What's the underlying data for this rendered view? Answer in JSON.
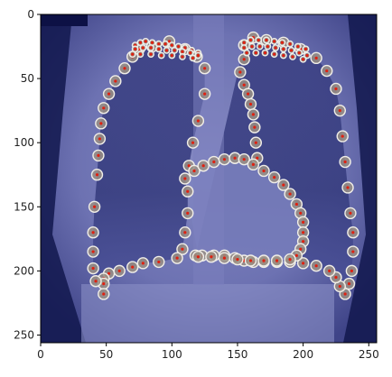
{
  "figure": {
    "image_extent": {
      "x": [
        0,
        256
      ],
      "y": [
        0,
        256
      ]
    },
    "x_ticks": [
      0,
      50,
      100,
      150,
      200,
      250
    ],
    "y_ticks": [
      0,
      50,
      100,
      150,
      200,
      250
    ],
    "x_tick_labels": [
      "0",
      "50",
      "100",
      "150",
      "200",
      "250"
    ],
    "y_tick_labels": [
      "0",
      "50",
      "100",
      "150",
      "200",
      "250"
    ],
    "colors": {
      "image_base": "#6f74b4",
      "lung_field": "#3c4184",
      "background_dark": "#0d1145",
      "marker_fill": "#9a8f84",
      "marker_edge": "#f0eee8",
      "marker_center": "#e02010"
    }
  },
  "landmarks": {
    "right_lung_outline": [
      [
        85,
        25
      ],
      [
        98,
        21
      ],
      [
        110,
        27
      ],
      [
        119,
        33
      ],
      [
        125,
        42
      ],
      [
        125,
        62
      ],
      [
        120,
        83
      ],
      [
        116,
        100
      ],
      [
        113,
        118
      ],
      [
        112,
        138
      ],
      [
        112,
        155
      ],
      [
        110,
        170
      ],
      [
        108,
        183
      ],
      [
        104,
        190
      ],
      [
        90,
        193
      ],
      [
        78,
        194
      ],
      [
        70,
        197
      ],
      [
        60,
        200
      ],
      [
        52,
        202
      ],
      [
        48,
        206
      ],
      [
        48,
        210
      ],
      [
        48,
        218
      ],
      [
        42,
        208
      ],
      [
        40,
        198
      ],
      [
        40,
        185
      ],
      [
        40,
        170
      ],
      [
        41,
        150
      ],
      [
        43,
        125
      ],
      [
        44,
        110
      ],
      [
        45,
        97
      ],
      [
        46,
        85
      ],
      [
        48,
        73
      ],
      [
        52,
        62
      ],
      [
        57,
        52
      ],
      [
        64,
        42
      ],
      [
        70,
        33
      ],
      [
        75,
        27
      ]
    ],
    "right_apex_points": [
      [
        72,
        24
      ],
      [
        76,
        22
      ],
      [
        80,
        21
      ],
      [
        85,
        22
      ],
      [
        90,
        23
      ],
      [
        95,
        23
      ],
      [
        100,
        24
      ],
      [
        105,
        25
      ],
      [
        110,
        26
      ],
      [
        115,
        28
      ],
      [
        120,
        30
      ],
      [
        72,
        27
      ],
      [
        78,
        26
      ],
      [
        84,
        26
      ],
      [
        90,
        27
      ],
      [
        96,
        28
      ],
      [
        102,
        28
      ],
      [
        108,
        29
      ],
      [
        114,
        30
      ],
      [
        120,
        32
      ],
      [
        70,
        31
      ],
      [
        76,
        31
      ],
      [
        84,
        31
      ],
      [
        92,
        32
      ],
      [
        100,
        32
      ],
      [
        108,
        33
      ],
      [
        116,
        34
      ]
    ],
    "left_lung_outline": [
      [
        155,
        24
      ],
      [
        162,
        18
      ],
      [
        172,
        20
      ],
      [
        185,
        22
      ],
      [
        198,
        27
      ],
      [
        210,
        34
      ],
      [
        218,
        44
      ],
      [
        225,
        58
      ],
      [
        228,
        75
      ],
      [
        230,
        95
      ],
      [
        232,
        115
      ],
      [
        234,
        135
      ],
      [
        236,
        155
      ],
      [
        238,
        170
      ],
      [
        238,
        185
      ],
      [
        237,
        200
      ],
      [
        235,
        210
      ],
      [
        232,
        218
      ],
      [
        228,
        212
      ],
      [
        225,
        205
      ],
      [
        220,
        200
      ],
      [
        210,
        196
      ],
      [
        200,
        194
      ],
      [
        190,
        193
      ],
      [
        180,
        193
      ],
      [
        170,
        193
      ],
      [
        162,
        193
      ],
      [
        155,
        192
      ],
      [
        148,
        190
      ],
      [
        140,
        188
      ],
      [
        132,
        188
      ],
      [
        123,
        188
      ],
      [
        118,
        188
      ],
      [
        155,
        35
      ],
      [
        152,
        45
      ],
      [
        155,
        55
      ],
      [
        158,
        62
      ],
      [
        160,
        70
      ],
      [
        162,
        78
      ],
      [
        163,
        88
      ],
      [
        164,
        100
      ],
      [
        165,
        112
      ]
    ],
    "left_apex_points": [
      [
        155,
        22
      ],
      [
        160,
        20
      ],
      [
        166,
        20
      ],
      [
        172,
        20
      ],
      [
        178,
        21
      ],
      [
        184,
        22
      ],
      [
        190,
        23
      ],
      [
        196,
        25
      ],
      [
        202,
        27
      ],
      [
        155,
        26
      ],
      [
        161,
        25
      ],
      [
        167,
        25
      ],
      [
        173,
        25
      ],
      [
        179,
        26
      ],
      [
        185,
        27
      ],
      [
        191,
        28
      ],
      [
        197,
        30
      ],
      [
        203,
        32
      ],
      [
        157,
        30
      ],
      [
        164,
        30
      ],
      [
        171,
        30
      ],
      [
        178,
        31
      ],
      [
        185,
        32
      ],
      [
        192,
        33
      ],
      [
        200,
        35
      ]
    ],
    "heart_outline": [
      [
        110,
        128
      ],
      [
        117,
        122
      ],
      [
        124,
        118
      ],
      [
        132,
        115
      ],
      [
        140,
        113
      ],
      [
        148,
        112
      ],
      [
        155,
        113
      ],
      [
        162,
        117
      ],
      [
        170,
        122
      ],
      [
        178,
        127
      ],
      [
        185,
        133
      ],
      [
        190,
        140
      ],
      [
        195,
        148
      ],
      [
        198,
        155
      ],
      [
        200,
        162
      ],
      [
        200,
        170
      ],
      [
        200,
        177
      ],
      [
        198,
        183
      ],
      [
        195,
        188
      ],
      [
        190,
        191
      ],
      [
        180,
        192
      ],
      [
        170,
        192
      ],
      [
        160,
        192
      ],
      [
        150,
        191
      ],
      [
        140,
        190
      ],
      [
        130,
        189
      ],
      [
        120,
        189
      ]
    ]
  }
}
